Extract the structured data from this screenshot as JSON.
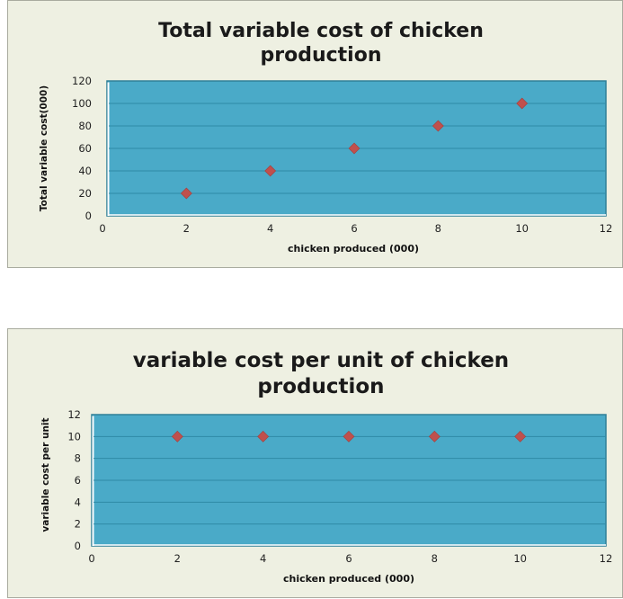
{
  "chart_data": [
    {
      "type": "scatter",
      "title": [
        "Total variable cost of chicken",
        "production"
      ],
      "xlabel": "chicken produced (000)",
      "ylabel": "Total variable cost(000)",
      "xlim": [
        0,
        12
      ],
      "ylim": [
        0,
        120
      ],
      "xticks": [
        0,
        2,
        4,
        6,
        8,
        10,
        12
      ],
      "yticks": [
        0,
        20,
        40,
        60,
        80,
        100,
        120
      ],
      "grid": true,
      "plot_bg": "#4aaac8",
      "marker_color": "#c0504d",
      "points": [
        {
          "x": 2,
          "y": 20
        },
        {
          "x": 4,
          "y": 40
        },
        {
          "x": 6,
          "y": 60
        },
        {
          "x": 8,
          "y": 80
        },
        {
          "x": 10,
          "y": 100
        }
      ]
    },
    {
      "type": "scatter",
      "title": [
        "variable cost per unit of chicken",
        "production"
      ],
      "xlabel": "chicken produced (000)",
      "ylabel": "variable cost per unit",
      "xlim": [
        0,
        12
      ],
      "ylim": [
        0,
        12
      ],
      "xticks": [
        0,
        2,
        4,
        6,
        8,
        10,
        12
      ],
      "yticks": [
        0,
        2,
        4,
        6,
        8,
        10,
        12
      ],
      "grid": true,
      "plot_bg": "#4aaac8",
      "marker_color": "#c0504d",
      "points": [
        {
          "x": 2,
          "y": 10
        },
        {
          "x": 4,
          "y": 10
        },
        {
          "x": 6,
          "y": 10
        },
        {
          "x": 8,
          "y": 10
        },
        {
          "x": 10,
          "y": 10
        }
      ]
    }
  ]
}
